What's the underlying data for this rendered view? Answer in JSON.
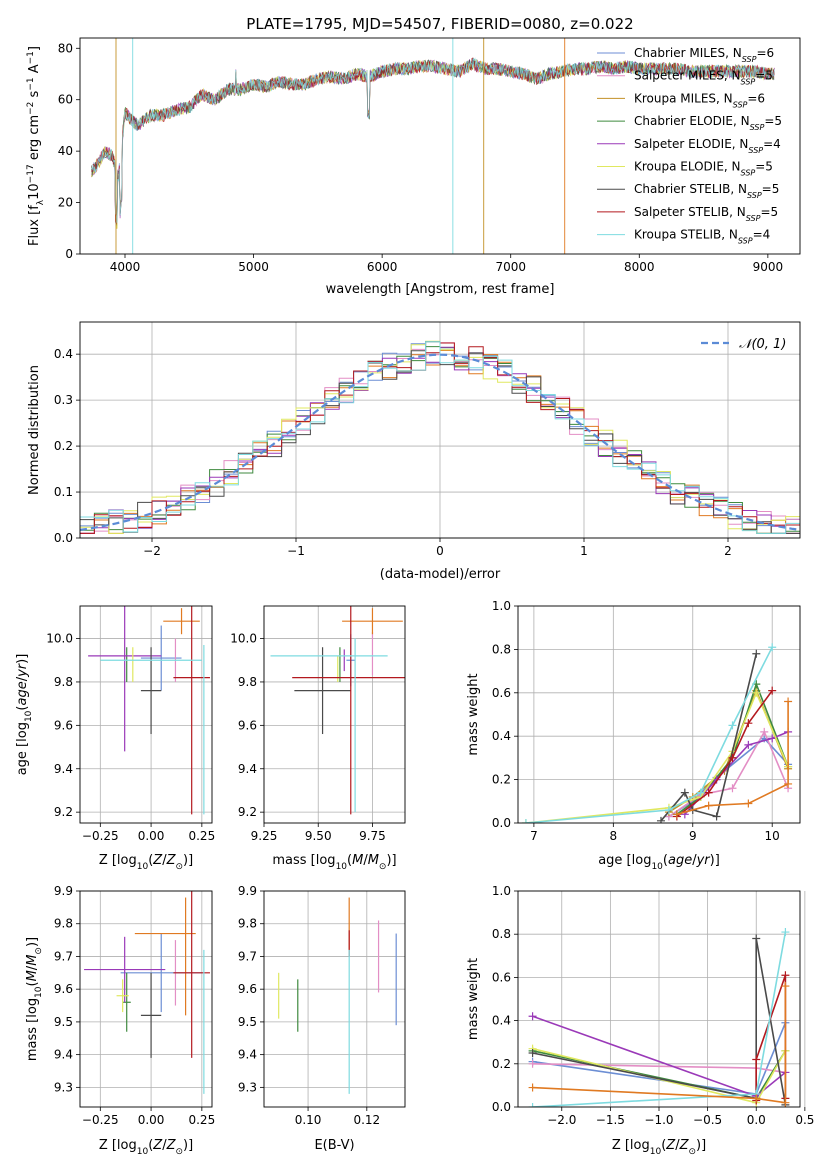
{
  "figure": {
    "title": "PLATE=1795, MJD=54507, FIBERID=0080, z=0.022"
  },
  "legend_spectrum": [
    {
      "label": "Chabrier MILES, N",
      "sub": "SSP",
      "tail": "=6",
      "color": "#6c8ed4"
    },
    {
      "label": "Salpeter MILES, N",
      "sub": "SSP",
      "tail": "=5",
      "color": "#e38ec5"
    },
    {
      "label": "Kroupa MILES, N",
      "sub": "SSP",
      "tail": "=6",
      "color": "#c39126"
    },
    {
      "label": "Chabrier ELODIE, N",
      "sub": "SSP",
      "tail": "=5",
      "color": "#3f8a3f"
    },
    {
      "label": "Salpeter ELODIE, N",
      "sub": "SSP",
      "tail": "=4",
      "color": "#9a39b8"
    },
    {
      "label": "Kroupa ELODIE, N",
      "sub": "SSP",
      "tail": "=5",
      "color": "#e0e860"
    },
    {
      "label": "Chabrier STELIB, N",
      "sub": "SSP",
      "tail": "=5",
      "color": "#4a4a4a"
    },
    {
      "label": "Salpeter STELIB, N",
      "sub": "SSP",
      "tail": "=5",
      "color": "#b3191f"
    },
    {
      "label": "Kroupa STELIB, N",
      "sub": "SSP",
      "tail": "=4",
      "color": "#7edbe0"
    }
  ],
  "legend_hist": {
    "label": "𝒩(0, 1)",
    "color": "#5b8bd6"
  },
  "chart_data": [
    {
      "id": "spectrum",
      "type": "line",
      "title": "PLATE=1795, MJD=54507, FIBERID=0080, z=0.022",
      "xlabel": "wavelength [Angstrom, rest frame]",
      "ylabel": "Flux [fλ10⁻¹⁷ erg cm⁻² s⁻¹ A⁻¹]",
      "xlim": [
        3650,
        9250
      ],
      "ylim": [
        0,
        84
      ],
      "xticks": [
        4000,
        5000,
        6000,
        7000,
        8000,
        9000
      ],
      "yticks": [
        0,
        20,
        40,
        60,
        80
      ],
      "grid": false,
      "legend": "top-right",
      "continuum": {
        "x": [
          3740,
          3800,
          3850,
          3900,
          3950,
          4000,
          4050,
          4100,
          4200,
          4300,
          4400,
          4500,
          4600,
          4700,
          4800,
          4900,
          5000,
          5100,
          5200,
          5300,
          5400,
          5500,
          5600,
          5700,
          5800,
          5900,
          6000,
          6100,
          6200,
          6300,
          6400,
          6500,
          6600,
          6700,
          6800,
          6900,
          7000,
          7100,
          7200,
          7300,
          7400,
          7500,
          7600,
          7700,
          7800,
          7900,
          8000,
          8100,
          8200,
          8300,
          8400,
          8500,
          8600,
          8700,
          8800,
          8900,
          9000,
          9050
        ],
        "y": [
          32,
          36,
          40,
          38,
          30,
          55,
          52,
          50,
          54,
          54,
          56,
          57,
          62,
          60,
          64,
          64,
          66,
          65,
          67,
          66,
          66,
          68,
          69,
          68,
          70,
          69,
          71,
          72,
          72,
          73,
          73,
          72,
          71,
          74,
          72,
          72,
          71,
          70,
          68,
          70,
          71,
          72,
          72,
          73,
          72,
          73,
          72,
          72,
          72,
          72,
          71,
          71,
          71,
          71,
          71,
          71,
          70,
          70
        ]
      }
    },
    {
      "id": "residual-hist",
      "type": "histogram",
      "xlabel": "(data-model)/error",
      "ylabel": "Normed distribution",
      "xlim": [
        -2.5,
        2.5
      ],
      "ylim": [
        0,
        0.47
      ],
      "xticks": [
        -2,
        -1,
        0,
        1,
        2
      ],
      "yticks": [
        0.0,
        0.1,
        0.2,
        0.3,
        0.4
      ],
      "grid": true,
      "legend": "top-right",
      "bin_width": 0.1,
      "reference": "normal(0,1)"
    },
    {
      "id": "age-vs-Z",
      "type": "errorbar",
      "xlabel": "Z [log10(Z/Z⊙)]",
      "ylabel": "age  [log10(age/yr)]",
      "xlim": [
        -0.35,
        0.3
      ],
      "ylim": [
        9.15,
        10.15
      ],
      "xticks": [
        -0.25,
        0.0,
        0.25
      ],
      "yticks": [
        9.2,
        9.4,
        9.6,
        9.8,
        10.0
      ],
      "grid": true,
      "points": [
        {
          "x": 0.05,
          "xerr": 0.1,
          "y": 9.91,
          "yerr": 0.15,
          "color": "#6c8ed4"
        },
        {
          "x": 0.12,
          "xerr": 0.0,
          "y": 9.9,
          "yerr": 0.1,
          "color": "#e38ec5"
        },
        {
          "x": 0.15,
          "xerr": 0.09,
          "y": 10.08,
          "yerr": 0.06,
          "color": "#e07a22"
        },
        {
          "x": -0.12,
          "xerr": 0.0,
          "y": 9.88,
          "yerr": 0.08,
          "color": "#3f8a3f"
        },
        {
          "x": -0.13,
          "xerr": 0.18,
          "y": 9.92,
          "yerr": 0.44,
          "color": "#9a39b8"
        },
        {
          "x": -0.09,
          "xerr": 0.0,
          "y": 9.88,
          "yerr": 0.08,
          "color": "#e0e860"
        },
        {
          "x": 0.0,
          "xerr": 0.05,
          "y": 9.76,
          "yerr": 0.2,
          "color": "#4a4a4a"
        },
        {
          "x": 0.2,
          "xerr": 0.09,
          "y": 9.82,
          "yerr": 0.63,
          "color": "#b3191f"
        },
        {
          "x": 0.0,
          "xerr": 0.25,
          "y": 9.9,
          "yerr": 0.0,
          "color": "#7edbe0"
        },
        {
          "x": 0.26,
          "xerr": 0.0,
          "y": 9.58,
          "yerr": 0.39,
          "color": "#7edbe0"
        }
      ]
    },
    {
      "id": "age-vs-mass",
      "type": "errorbar",
      "xlabel": "mass [log10(M/M⊙)]",
      "xlim": [
        9.25,
        9.9
      ],
      "ylim": [
        9.15,
        10.15
      ],
      "xticks": [
        9.25,
        9.5,
        9.75
      ],
      "yticks": [
        9.2,
        9.4,
        9.6,
        9.8,
        10.0
      ],
      "grid": true,
      "points": [
        {
          "x": 9.65,
          "xerr": 0.02,
          "y": 9.9,
          "yerr": 0.12,
          "color": "#6c8ed4"
        },
        {
          "x": 9.75,
          "xerr": 0.0,
          "y": 9.93,
          "yerr": 0.1,
          "color": "#e38ec5"
        },
        {
          "x": 9.75,
          "xerr": 0.14,
          "y": 10.08,
          "yerr": 0.06,
          "color": "#e07a22"
        },
        {
          "x": 9.6,
          "xerr": 0.0,
          "y": 9.88,
          "yerr": 0.08,
          "color": "#3f8a3f"
        },
        {
          "x": 9.62,
          "xerr": 0.0,
          "y": 9.9,
          "yerr": 0.05,
          "color": "#9a39b8"
        },
        {
          "x": 9.59,
          "xerr": 0.0,
          "y": 9.86,
          "yerr": 0.06,
          "color": "#e0e860"
        },
        {
          "x": 9.52,
          "xerr": 0.13,
          "y": 9.76,
          "yerr": 0.2,
          "color": "#4a4a4a"
        },
        {
          "x": 9.65,
          "xerr": 0.27,
          "y": 9.82,
          "yerr": 0.63,
          "color": "#b3191f"
        },
        {
          "x": 9.55,
          "xerr": 0.27,
          "y": 9.92,
          "yerr": 0.0,
          "color": "#7edbe0"
        },
        {
          "x": 9.67,
          "xerr": 0.0,
          "y": 9.6,
          "yerr": 0.4,
          "color": "#7edbe0"
        }
      ]
    },
    {
      "id": "weight-vs-age",
      "type": "line",
      "xlabel": "age  [log10(age/yr)]",
      "ylabel": "mass weight",
      "xlim": [
        6.8,
        10.35
      ],
      "ylim": [
        0.0,
        1.0
      ],
      "xticks": [
        7,
        8,
        9,
        10
      ],
      "yticks": [
        0.0,
        0.2,
        0.4,
        0.6,
        0.8,
        1.0
      ],
      "grid": true,
      "series": [
        {
          "color": "#6c8ed4",
          "x": [
            8.7,
            9.0,
            9.3,
            9.9,
            10.2
          ],
          "y": [
            0.03,
            0.1,
            0.21,
            0.39,
            0.27
          ]
        },
        {
          "color": "#e38ec5",
          "x": [
            8.7,
            9.1,
            9.5,
            9.9,
            10.2
          ],
          "y": [
            0.03,
            0.13,
            0.16,
            0.42,
            0.16
          ]
        },
        {
          "color": "#c39126",
          "x": [
            8.7,
            9.0,
            9.4,
            9.8,
            10.2
          ],
          "y": [
            0.05,
            0.12,
            0.24,
            0.61,
            0.25
          ]
        },
        {
          "color": "#3f8a3f",
          "x": [
            8.8,
            9.1,
            9.5,
            9.8,
            10.2
          ],
          "y": [
            0.04,
            0.12,
            0.3,
            0.64,
            0.26
          ]
        },
        {
          "color": "#9a39b8",
          "x": [
            8.9,
            9.3,
            9.7,
            10.0,
            10.2
          ],
          "y": [
            0.04,
            0.2,
            0.36,
            0.39,
            0.42
          ]
        },
        {
          "color": "#e0e860",
          "x": [
            6.9,
            8.7,
            9.1,
            9.5,
            9.8,
            10.2
          ],
          "y": [
            0.0,
            0.07,
            0.12,
            0.33,
            0.6,
            0.26
          ]
        },
        {
          "color": "#4a4a4a",
          "x": [
            8.6,
            8.9,
            9.0,
            9.3,
            9.8
          ],
          "y": [
            0.01,
            0.14,
            0.06,
            0.03,
            0.78
          ]
        },
        {
          "color": "#b3191f",
          "x": [
            8.8,
            9.2,
            9.5,
            9.7,
            10.0
          ],
          "y": [
            0.03,
            0.14,
            0.3,
            0.46,
            0.61
          ]
        },
        {
          "color": "#7edbe0",
          "x": [
            6.9,
            8.7,
            9.1,
            9.5,
            10.0
          ],
          "y": [
            0.0,
            0.06,
            0.14,
            0.45,
            0.81
          ]
        },
        {
          "color": "#e07a22",
          "x": [
            8.8,
            9.2,
            9.7,
            10.2,
            10.2
          ],
          "y": [
            0.04,
            0.08,
            0.09,
            0.18,
            0.56
          ]
        }
      ]
    },
    {
      "id": "mass-vs-Z",
      "type": "errorbar",
      "xlabel": "Z [log10(Z/Z⊙)]",
      "ylabel": "mass [log10(M/M⊙)]",
      "xlim": [
        -0.35,
        0.3
      ],
      "ylim": [
        9.24,
        9.9
      ],
      "xticks": [
        -0.25,
        0.0,
        0.25
      ],
      "yticks": [
        9.3,
        9.4,
        9.5,
        9.6,
        9.7,
        9.8,
        9.9
      ],
      "grid": true,
      "points": [
        {
          "x": 0.05,
          "xerr": 0.2,
          "y": 9.65,
          "yerr": 0.12,
          "color": "#6c8ed4"
        },
        {
          "x": 0.12,
          "xerr": 0.0,
          "y": 9.65,
          "yerr": 0.1,
          "color": "#e38ec5"
        },
        {
          "x": 0.07,
          "xerr": 0.15,
          "y": 9.77,
          "yerr": 0.0,
          "color": "#e07a22"
        },
        {
          "x": 0.17,
          "xerr": 0.0,
          "y": 9.7,
          "yerr": 0.18,
          "color": "#e07a22"
        },
        {
          "x": -0.12,
          "xerr": 0.02,
          "y": 9.56,
          "yerr": 0.09,
          "color": "#3f8a3f"
        },
        {
          "x": -0.13,
          "xerr": 0.2,
          "y": 9.66,
          "yerr": 0.1,
          "color": "#9a39b8"
        },
        {
          "x": -0.14,
          "xerr": 0.03,
          "y": 9.58,
          "yerr": 0.05,
          "color": "#e0e860"
        },
        {
          "x": 0.0,
          "xerr": 0.05,
          "y": 9.52,
          "yerr": 0.13,
          "color": "#4a4a4a"
        },
        {
          "x": 0.2,
          "xerr": 0.09,
          "y": 9.65,
          "yerr": 0.26,
          "color": "#b3191f"
        },
        {
          "x": 0.26,
          "xerr": 0.0,
          "y": 9.5,
          "yerr": 0.22,
          "color": "#7edbe0"
        }
      ]
    },
    {
      "id": "mass-vs-ebv",
      "type": "errorbar",
      "xlabel": "E(B-V)",
      "xlim": [
        0.085,
        0.133
      ],
      "ylim": [
        9.24,
        9.9
      ],
      "xticks": [
        0.1,
        0.12
      ],
      "yticks": [
        9.3,
        9.4,
        9.5,
        9.6,
        9.7,
        9.8,
        9.9
      ],
      "grid": true,
      "points": [
        {
          "x": 0.13,
          "xerr": 0.0,
          "y": 9.63,
          "yerr": 0.14,
          "color": "#6c8ed4"
        },
        {
          "x": 0.124,
          "xerr": 0.0,
          "y": 9.7,
          "yerr": 0.11,
          "color": "#e38ec5"
        },
        {
          "x": 0.114,
          "xerr": 0.0,
          "y": 9.8,
          "yerr": 0.08,
          "color": "#e07a22"
        },
        {
          "x": 0.0965,
          "xerr": 0.0,
          "y": 9.55,
          "yerr": 0.08,
          "color": "#3f8a3f"
        },
        {
          "x": 0.09,
          "xerr": 0.0,
          "y": 9.58,
          "yerr": 0.07,
          "color": "#e0e860"
        },
        {
          "x": 0.114,
          "xerr": 0.0,
          "y": 9.74,
          "yerr": 0.04,
          "color": "#b3191f"
        },
        {
          "x": 0.114,
          "xerr": 0.0,
          "y": 9.5,
          "yerr": 0.22,
          "color": "#7edbe0"
        }
      ]
    },
    {
      "id": "weight-vs-Z",
      "type": "line",
      "xlabel": "Z [log10(Z/Z⊙)]",
      "ylabel": "mass weight",
      "xlim": [
        -2.45,
        0.45
      ],
      "ylim": [
        0.0,
        1.0
      ],
      "xticks": [
        -2.0,
        -1.5,
        -1.0,
        -0.5,
        0.0,
        0.5
      ],
      "yticks": [
        0.0,
        0.2,
        0.4,
        0.6,
        0.8,
        1.0
      ],
      "grid": true,
      "series": [
        {
          "color": "#6c8ed4",
          "x": [
            -2.3,
            0.0,
            0.3
          ],
          "y": [
            0.21,
            0.06,
            0.39
          ]
        },
        {
          "color": "#e38ec5",
          "x": [
            -2.3,
            0.0,
            0.3
          ],
          "y": [
            0.2,
            0.18,
            0.16
          ]
        },
        {
          "color": "#3f8a3f",
          "x": [
            -2.3,
            0.0,
            0.3
          ],
          "y": [
            0.26,
            0.04,
            0.26
          ]
        },
        {
          "color": "#9a39b8",
          "x": [
            -2.3,
            0.0,
            0.3
          ],
          "y": [
            0.42,
            0.05,
            0.16
          ]
        },
        {
          "color": "#e0e860",
          "x": [
            -2.3,
            0.0,
            0.3
          ],
          "y": [
            0.27,
            0.02,
            0.26
          ]
        },
        {
          "color": "#4a4a4a",
          "x": [
            -2.3,
            0.0,
            0.0,
            0.3
          ],
          "y": [
            0.25,
            0.04,
            0.78,
            0.01
          ]
        },
        {
          "color": "#b3191f",
          "x": [
            0.0,
            0.0,
            0.3,
            0.3
          ],
          "y": [
            0.03,
            0.22,
            0.61,
            0.04
          ]
        },
        {
          "color": "#7edbe0",
          "x": [
            -2.3,
            0.0,
            0.3
          ],
          "y": [
            0.0,
            0.06,
            0.81
          ]
        },
        {
          "color": "#e07a22",
          "x": [
            -2.3,
            0.0,
            0.3,
            0.3
          ],
          "y": [
            0.09,
            0.04,
            0.02,
            0.56
          ]
        }
      ]
    }
  ]
}
